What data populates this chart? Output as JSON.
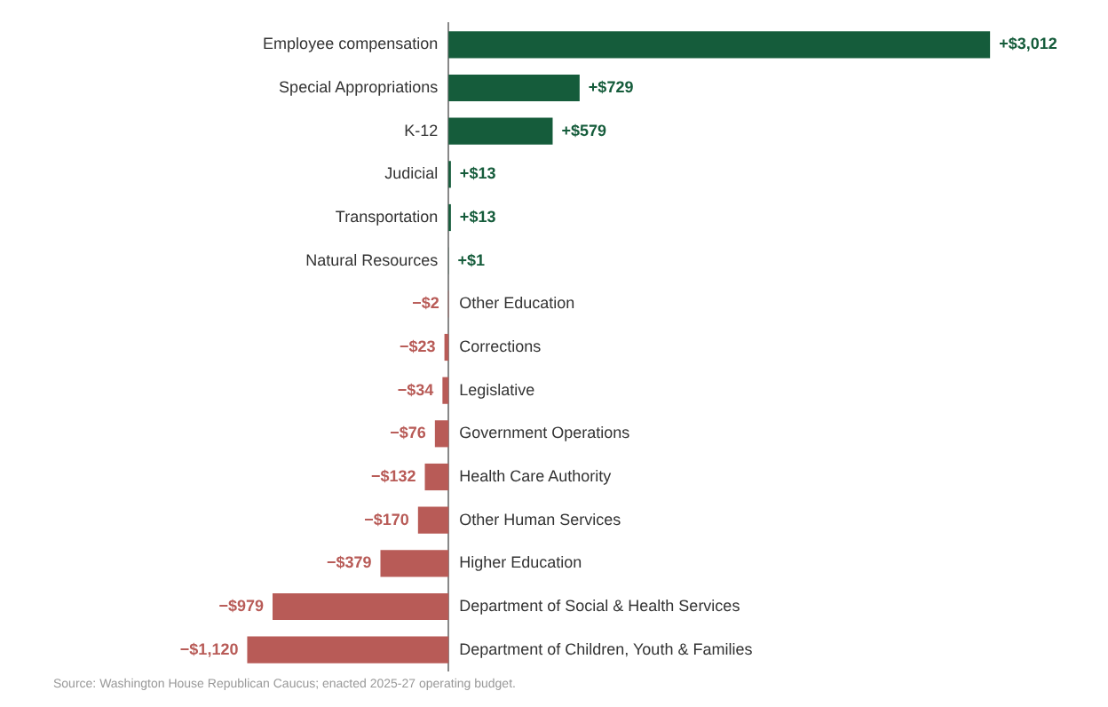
{
  "chart_data": {
    "type": "bar",
    "orientation": "horizontal",
    "categories": [
      "Employee compensation",
      "Special Appropriations",
      "K-12",
      "Judicial",
      "Transportation",
      "Natural Resources",
      "Other Education",
      "Corrections",
      "Legislative",
      "Government Operations",
      "Health Care Authority",
      "Other Human Services",
      "Higher Education",
      "Department of Social & Health Services",
      "Department of Children, Youth & Families"
    ],
    "values": [
      3012,
      729,
      579,
      13,
      13,
      1,
      -2,
      -23,
      -34,
      -76,
      -132,
      -170,
      -379,
      -979,
      -1120
    ],
    "colors": [
      "#155c3b",
      "#155c3b",
      "#155c3b",
      "#155c3b",
      "#155c3b",
      "#155c3b",
      "#b85b57",
      "#b85b57",
      "#b85b57",
      "#b85b57",
      "#b85b57",
      "#b85b57",
      "#b85b57",
      "#b85b57",
      "#b85b57"
    ],
    "value_labels": [
      "+$3,012",
      "+$729",
      "+$579",
      "+$13",
      "+$13",
      "+$1",
      "−$2",
      "−$23",
      "−$34",
      "−$76",
      "−$132",
      "−$170",
      "−$379",
      "−$979",
      "−$1,120"
    ],
    "annotations": [
      "Source: Washington House Republican Caucus; enacted 2025-27 operating budget."
    ]
  }
}
